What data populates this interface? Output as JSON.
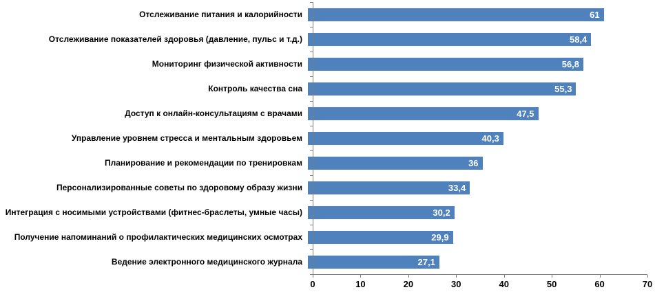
{
  "chart_data": {
    "type": "bar",
    "orientation": "horizontal",
    "title": "",
    "xlabel": "",
    "ylabel": "",
    "categories": [
      "Отслеживание питания и калорийности",
      "Отслеживание показателей здоровья (давление, пульс и т.д.)",
      "Мониторинг физической активности",
      "Контроль качества сна",
      "Доступ к онлайн-консультациям с врачами",
      "Управление уровнем стресса и ментальным здоровьем",
      "Планирование и рекомендации по тренировкам",
      "Персонализированные советы по здоровому образу жизни",
      "Интеграция с носимыми устройствами (фитнес-браслеты, умные часы)",
      "Получение напоминаний о профилактических медицинских осмотрах",
      "Ведение электронного медицинского журнала"
    ],
    "values": [
      61,
      58.4,
      56.8,
      55.3,
      47.5,
      40.3,
      36,
      33.4,
      30.2,
      29.9,
      27.1
    ],
    "value_labels": [
      "61",
      "58,4",
      "56,8",
      "55,3",
      "47,5",
      "40,3",
      "36",
      "33,4",
      "30,2",
      "29,9",
      "27,1"
    ],
    "xlim": [
      0,
      70
    ],
    "x_ticks": [
      0,
      10,
      20,
      30,
      40,
      50,
      60,
      70
    ],
    "grid": false,
    "legend": "none",
    "bar_color": "#4f81bd",
    "value_label_color": "#ffffff",
    "axis_color": "#7f7f7f"
  }
}
